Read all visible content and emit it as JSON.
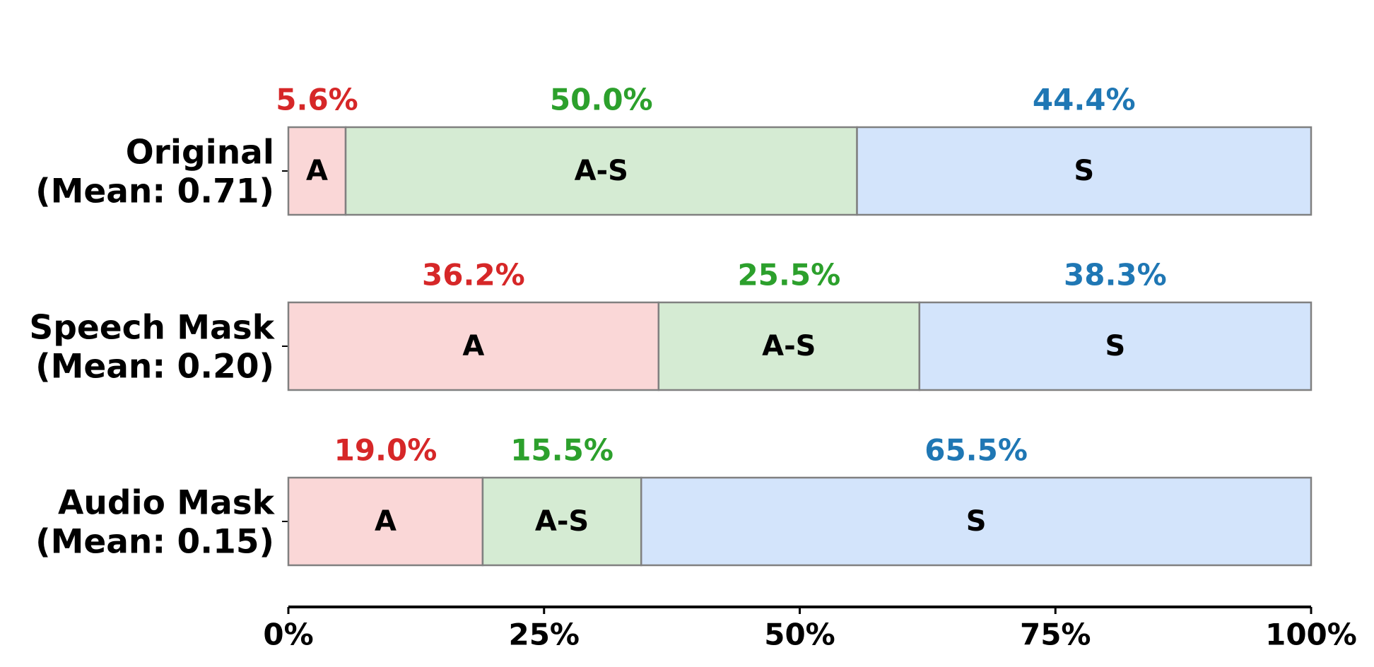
{
  "chart_data": {
    "type": "stacked-barh",
    "categories": [
      "Original",
      "Speech Mask",
      "Audio Mask"
    ],
    "category_notes": [
      "(Mean: 0.71)",
      "(Mean: 0.20)",
      "(Mean: 0.15)"
    ],
    "series": [
      {
        "name": "A",
        "color": "#fad7d7",
        "label_color": "#d62728",
        "values": [
          5.6,
          36.2,
          19.0
        ],
        "value_labels": [
          "5.6%",
          "36.2%",
          "19.0%"
        ]
      },
      {
        "name": "A-S",
        "color": "#d5ebd3",
        "label_color": "#2ca02c",
        "values": [
          50.0,
          25.5,
          15.5
        ],
        "value_labels": [
          "50.0%",
          "25.5%",
          "15.5%"
        ]
      },
      {
        "name": "S",
        "color": "#d3e4fb",
        "label_color": "#1f77b4",
        "values": [
          44.4,
          38.3,
          65.5
        ],
        "value_labels": [
          "44.4%",
          "38.3%",
          "65.5%"
        ]
      }
    ],
    "xlim": [
      0,
      100
    ],
    "xticks": [
      {
        "value": 0,
        "label": "0%"
      },
      {
        "value": 25,
        "label": "25%"
      },
      {
        "value": 50,
        "label": "50%"
      },
      {
        "value": 75,
        "label": "75%"
      },
      {
        "value": 100,
        "label": "100%"
      }
    ]
  }
}
